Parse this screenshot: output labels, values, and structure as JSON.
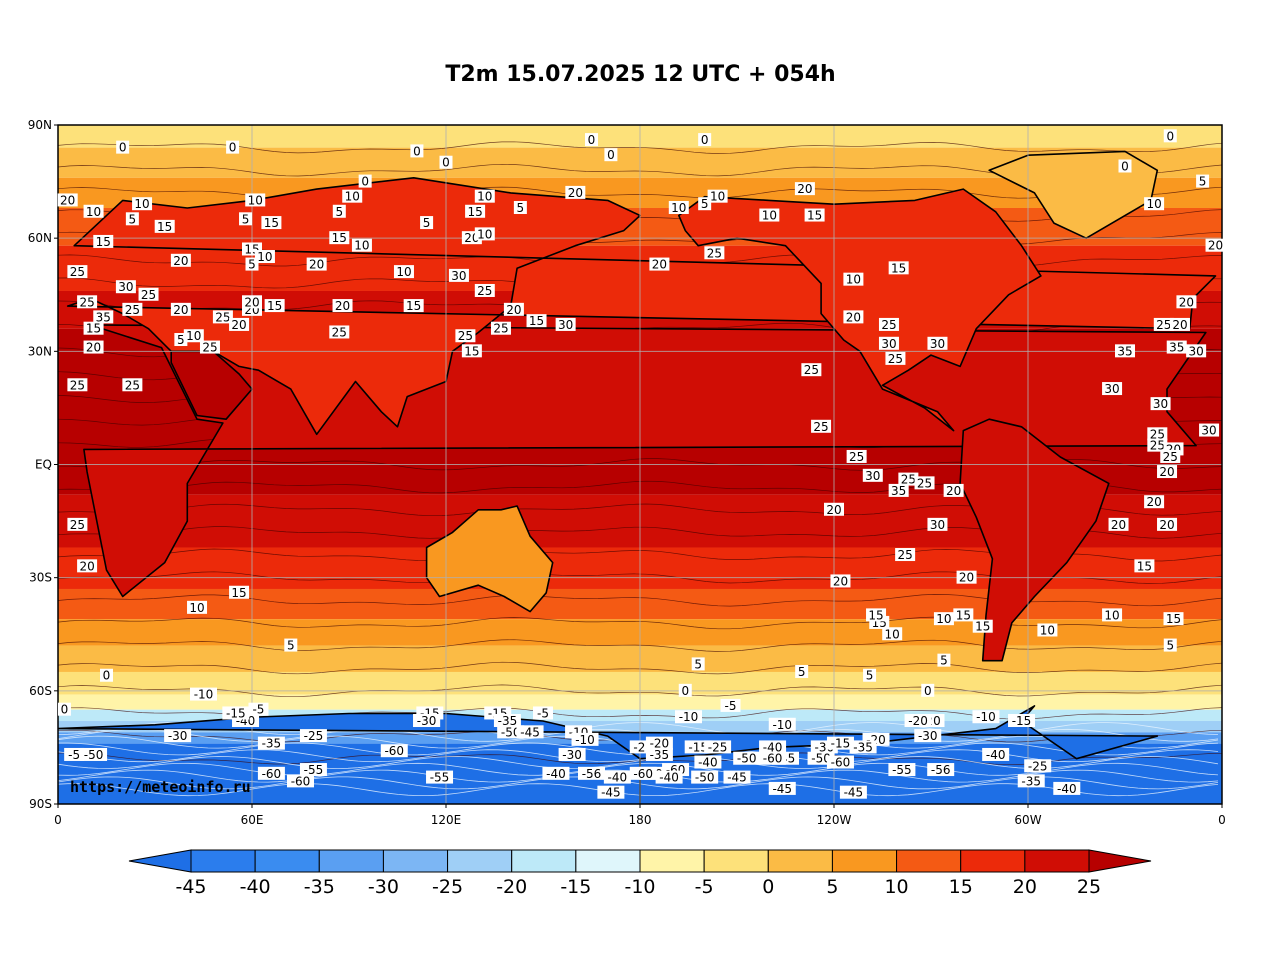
{
  "title": "T2m 15.07.2025 12 UTC + 054h",
  "watermark": "https://meteoinfo.ru",
  "map": {
    "lat_labels": [
      "90N",
      "60N",
      "30N",
      "EQ",
      "30S",
      "60S",
      "90S"
    ],
    "lon_labels": [
      "0",
      "60E",
      "120E",
      "180",
      "120W",
      "60W",
      "0"
    ],
    "grid": true
  },
  "colorbar": {
    "ticks": [
      "-45",
      "-40",
      "-35",
      "-30",
      "-25",
      "-20",
      "-15",
      "-10",
      "-5",
      "0",
      "5",
      "10",
      "15",
      "20",
      "25"
    ],
    "colors": [
      "#1e6fe6",
      "#2b7ded",
      "#3a8cf0",
      "#5a9ff2",
      "#7cb6f4",
      "#9fcff6",
      "#bde9f8",
      "#dff6fb",
      "#fff4a8",
      "#fde17a",
      "#fbbb45",
      "#f99820",
      "#f45a14",
      "#ec2a0a",
      "#d00d05",
      "#b70000"
    ],
    "under_color": "#1e6fe6",
    "over_color": "#b70000"
  },
  "contour_labels": [
    {
      "t": "0",
      "lon": -16,
      "lat": 87
    },
    {
      "t": "0",
      "lon": 20,
      "lat": 84
    },
    {
      "t": "0",
      "lon": 54,
      "lat": 84
    },
    {
      "t": "0",
      "lon": -30,
      "lat": 79
    },
    {
      "t": "5",
      "lon": -6,
      "lat": 75
    },
    {
      "t": "10",
      "lon": -21,
      "lat": 69
    },
    {
      "t": "20",
      "lon": 3,
      "lat": 70
    },
    {
      "t": "10",
      "lon": 11,
      "lat": 67
    },
    {
      "t": "5",
      "lon": 23,
      "lat": 65
    },
    {
      "t": "10",
      "lon": 26,
      "lat": 69
    },
    {
      "t": "15",
      "lon": 33,
      "lat": 63
    },
    {
      "t": "20",
      "lon": -2,
      "lat": 58
    },
    {
      "t": "15",
      "lon": 14,
      "lat": 59
    },
    {
      "t": "25",
      "lon": 6,
      "lat": 51
    },
    {
      "t": "20",
      "lon": -11,
      "lat": 43
    },
    {
      "t": "25",
      "lon": 9,
      "lat": 43
    },
    {
      "t": "30",
      "lon": 21,
      "lat": 47
    },
    {
      "t": "25",
      "lon": 28,
      "lat": 45
    },
    {
      "t": "35",
      "lon": 14,
      "lat": 39
    },
    {
      "t": "25",
      "lon": 23,
      "lat": 41
    },
    {
      "t": "20",
      "lon": 38,
      "lat": 41
    },
    {
      "t": "25",
      "lon": 51,
      "lat": 39
    },
    {
      "t": "20",
      "lon": 56,
      "lat": 37
    },
    {
      "t": "15",
      "lon": 11,
      "lat": 36
    },
    {
      "t": "20",
      "lon": 11,
      "lat": 31
    },
    {
      "t": "5",
      "lon": 38,
      "lat": 33
    },
    {
      "t": "10",
      "lon": 42,
      "lat": 34
    },
    {
      "t": "25",
      "lon": 47,
      "lat": 31
    },
    {
      "t": "20",
      "lon": 60,
      "lat": 41
    },
    {
      "t": "15",
      "lon": 67,
      "lat": 42
    },
    {
      "t": "25",
      "lon": -18,
      "lat": 37
    },
    {
      "t": "20",
      "lon": -13,
      "lat": 37
    },
    {
      "t": "35",
      "lon": -30,
      "lat": 30
    },
    {
      "t": "35",
      "lon": -14,
      "lat": 31
    },
    {
      "t": "30",
      "lon": -8,
      "lat": 30
    },
    {
      "t": "30",
      "lon": -1,
      "lat": 28
    },
    {
      "t": "25",
      "lon": 6,
      "lat": 21
    },
    {
      "t": "25",
      "lon": 23,
      "lat": 21
    },
    {
      "t": "30",
      "lon": -34,
      "lat": 20
    },
    {
      "t": "30",
      "lon": -19,
      "lat": 16
    },
    {
      "t": "25",
      "lon": -20,
      "lat": 8
    },
    {
      "t": "25",
      "lon": -20,
      "lat": 5
    },
    {
      "t": "30",
      "lon": -4,
      "lat": 9
    },
    {
      "t": "20",
      "lon": -15,
      "lat": 4
    },
    {
      "t": "25",
      "lon": -16,
      "lat": 2
    },
    {
      "t": "20",
      "lon": -17,
      "lat": -2
    },
    {
      "t": "20",
      "lon": -21,
      "lat": -10
    },
    {
      "t": "20",
      "lon": -32,
      "lat": -16
    },
    {
      "t": "20",
      "lon": -17,
      "lat": -16
    },
    {
      "t": "15",
      "lon": -24,
      "lat": -27
    },
    {
      "t": "25",
      "lon": 6,
      "lat": -16
    },
    {
      "t": "20",
      "lon": 9,
      "lat": -27
    },
    {
      "t": "10",
      "lon": -34,
      "lat": -40
    },
    {
      "t": "15",
      "lon": -15,
      "lat": -41
    },
    {
      "t": "5",
      "lon": -16,
      "lat": -48
    },
    {
      "t": "0",
      "lon": 15,
      "lat": -56
    },
    {
      "t": "10",
      "lon": 43,
      "lat": -38
    },
    {
      "t": "15",
      "lon": 56,
      "lat": -34
    },
    {
      "t": "5",
      "lon": 72,
      "lat": -48
    },
    {
      "t": "-10",
      "lon": 45,
      "lat": -61
    },
    {
      "t": "10",
      "lon": 61,
      "lat": 70
    },
    {
      "t": "5",
      "lon": 58,
      "lat": 65
    },
    {
      "t": "15",
      "lon": 66,
      "lat": 64
    },
    {
      "t": "15",
      "lon": 60,
      "lat": 57
    },
    {
      "t": "10",
      "lon": 64,
      "lat": 55
    },
    {
      "t": "5",
      "lon": 60,
      "lat": 53
    },
    {
      "t": "20",
      "lon": 80,
      "lat": 53
    },
    {
      "t": "20",
      "lon": 38,
      "lat": 54
    },
    {
      "t": "20",
      "lon": 60,
      "lat": 43
    },
    {
      "t": "25",
      "lon": 87,
      "lat": 35
    },
    {
      "t": "20",
      "lon": 88,
      "lat": 42
    },
    {
      "t": "10",
      "lon": 91,
      "lat": 71
    },
    {
      "t": "5",
      "lon": 87,
      "lat": 67
    },
    {
      "t": "15",
      "lon": 87,
      "lat": 60
    },
    {
      "t": "10",
      "lon": 94,
      "lat": 58
    },
    {
      "t": "0",
      "lon": 95,
      "lat": 75
    },
    {
      "t": "0",
      "lon": 75,
      "lat": 89
    },
    {
      "t": "0",
      "lon": 111,
      "lat": 83
    },
    {
      "t": "5",
      "lon": 114,
      "lat": 64
    },
    {
      "t": "10",
      "lon": 107,
      "lat": 51
    },
    {
      "t": "15",
      "lon": 110,
      "lat": 42
    },
    {
      "t": "20",
      "lon": 141,
      "lat": 41
    },
    {
      "t": "25",
      "lon": 137,
      "lat": 36
    },
    {
      "t": "15",
      "lon": 148,
      "lat": 38
    },
    {
      "t": "15",
      "lon": 128,
      "lat": 30
    },
    {
      "t": "25",
      "lon": 126,
      "lat": 34
    },
    {
      "t": "30",
      "lon": 157,
      "lat": 37
    },
    {
      "t": "30",
      "lon": 124,
      "lat": 50
    },
    {
      "t": "25",
      "lon": 132,
      "lat": 46
    },
    {
      "t": "20",
      "lon": 128,
      "lat": 60
    },
    {
      "t": "15",
      "lon": 129,
      "lat": 67
    },
    {
      "t": "10",
      "lon": 132,
      "lat": 71
    },
    {
      "t": "5",
      "lon": 143,
      "lat": 68
    },
    {
      "t": "10",
      "lon": 132,
      "lat": 61
    },
    {
      "t": "20",
      "lon": 160,
      "lat": 72
    },
    {
      "t": "0",
      "lon": 120,
      "lat": 80
    },
    {
      "t": "0",
      "lon": 165,
      "lat": 86
    },
    {
      "t": "0",
      "lon": 171,
      "lat": 82
    },
    {
      "t": "0",
      "lon": -160,
      "lat": 86
    },
    {
      "t": "20",
      "lon": -174,
      "lat": 53
    },
    {
      "t": "25",
      "lon": -157,
      "lat": 56
    },
    {
      "t": "20",
      "lon": -129,
      "lat": 73
    },
    {
      "t": "15",
      "lon": -126,
      "lat": 66
    },
    {
      "t": "10",
      "lon": -140,
      "lat": 66
    },
    {
      "t": "10",
      "lon": -156,
      "lat": 71
    },
    {
      "t": "10",
      "lon": -168,
      "lat": 68
    },
    {
      "t": "5",
      "lon": -160,
      "lat": 69
    },
    {
      "t": "15",
      "lon": -100,
      "lat": 52
    },
    {
      "t": "20",
      "lon": -114,
      "lat": 39
    },
    {
      "t": "25",
      "lon": -103,
      "lat": 37
    },
    {
      "t": "10",
      "lon": -114,
      "lat": 49
    },
    {
      "t": "30",
      "lon": -88,
      "lat": 32
    },
    {
      "t": "30",
      "lon": -103,
      "lat": 32
    },
    {
      "t": "25",
      "lon": -127,
      "lat": 25
    },
    {
      "t": "25",
      "lon": -124,
      "lat": 10
    },
    {
      "t": "25",
      "lon": -101,
      "lat": 28
    },
    {
      "t": "25",
      "lon": -113,
      "lat": 2
    },
    {
      "t": "25",
      "lon": -97,
      "lat": -4
    },
    {
      "t": "30",
      "lon": -108,
      "lat": -3
    },
    {
      "t": "35",
      "lon": -100,
      "lat": -7
    },
    {
      "t": "30",
      "lon": -88,
      "lat": -16
    },
    {
      "t": "25",
      "lon": -98,
      "lat": -24
    },
    {
      "t": "20",
      "lon": -118,
      "lat": -31
    },
    {
      "t": "20",
      "lon": -79,
      "lat": -30
    },
    {
      "t": "15",
      "lon": -74,
      "lat": -43
    },
    {
      "t": "10",
      "lon": -86,
      "lat": -41
    },
    {
      "t": "5",
      "lon": -86,
      "lat": -52
    },
    {
      "t": "15",
      "lon": -106,
      "lat": -42
    },
    {
      "t": "10",
      "lon": -102,
      "lat": -45
    },
    {
      "t": "5",
      "lon": -109,
      "lat": -56
    },
    {
      "t": "0",
      "lon": -91,
      "lat": -60
    },
    {
      "t": "5",
      "lon": -130,
      "lat": -55
    },
    {
      "t": "20",
      "lon": -120,
      "lat": -12
    },
    {
      "t": "25",
      "lon": -92,
      "lat": -5
    },
    {
      "t": "20",
      "lon": -83,
      "lat": -7
    },
    {
      "t": "15",
      "lon": -107,
      "lat": -40
    },
    {
      "t": "10",
      "lon": -54,
      "lat": -44
    },
    {
      "t": "15",
      "lon": -80,
      "lat": -40
    },
    {
      "t": "5",
      "lon": -162,
      "lat": -53
    },
    {
      "t": "0",
      "lon": -166,
      "lat": -60
    },
    {
      "t": "-5",
      "lon": -152,
      "lat": -64
    },
    {
      "t": "-10",
      "lon": -136,
      "lat": -69
    },
    {
      "t": "-10",
      "lon": -165,
      "lat": -67
    },
    {
      "t": "-10",
      "lon": 161,
      "lat": -71
    },
    {
      "t": "-20",
      "lon": -179,
      "lat": -75
    },
    {
      "t": "-15",
      "lon": -162,
      "lat": -75
    },
    {
      "t": "-25",
      "lon": -156,
      "lat": -75
    },
    {
      "t": "-40",
      "lon": -139,
      "lat": -75
    },
    {
      "t": "-30",
      "lon": -123,
      "lat": -75
    },
    {
      "t": "-15",
      "lon": -118,
      "lat": -74
    },
    {
      "t": "-20",
      "lon": -107,
      "lat": -73
    },
    {
      "t": "-35",
      "lon": -111,
      "lat": -75
    },
    {
      "t": "-20",
      "lon": -90,
      "lat": -68
    },
    {
      "t": "-30",
      "lon": -91,
      "lat": -72
    },
    {
      "t": "-10",
      "lon": -73,
      "lat": -67
    },
    {
      "t": "-15",
      "lon": -62,
      "lat": -68
    },
    {
      "t": "-25",
      "lon": -57,
      "lat": -80
    },
    {
      "t": "-40",
      "lon": -70,
      "lat": -77
    },
    {
      "t": "-56",
      "lon": -87,
      "lat": -81
    },
    {
      "t": "-55",
      "lon": -99,
      "lat": -81
    },
    {
      "t": "-35",
      "lon": -59,
      "lat": -84
    },
    {
      "t": "-40",
      "lon": -48,
      "lat": -86
    },
    {
      "t": "-45",
      "lon": -114,
      "lat": -87
    },
    {
      "t": "-45",
      "lon": -136,
      "lat": -86
    },
    {
      "t": "-50",
      "lon": -178,
      "lat": -89
    },
    {
      "t": "-45",
      "lon": -150,
      "lat": -83
    },
    {
      "t": "-50",
      "lon": -160,
      "lat": -83
    },
    {
      "t": "-60",
      "lon": -169,
      "lat": -81
    },
    {
      "t": "-50",
      "lon": -147,
      "lat": -78
    },
    {
      "t": "-45",
      "lon": -135,
      "lat": -78
    },
    {
      "t": "-50",
      "lon": -124,
      "lat": -78
    },
    {
      "t": "-60",
      "lon": -118,
      "lat": -79
    },
    {
      "t": "-60",
      "lon": -139,
      "lat": -78
    },
    {
      "t": "-40",
      "lon": 173,
      "lat": -83
    },
    {
      "t": "-45",
      "lon": 171,
      "lat": -87
    },
    {
      "t": "-56",
      "lon": 165,
      "lat": -82
    },
    {
      "t": "-40",
      "lon": 154,
      "lat": -82
    },
    {
      "t": "-30",
      "lon": 159,
      "lat": -77
    },
    {
      "t": "-10",
      "lon": 163,
      "lat": -73
    },
    {
      "t": "-60",
      "lon": -176,
      "lat": -82
    },
    {
      "t": "-35",
      "lon": -174,
      "lat": -77
    },
    {
      "t": "-20",
      "lon": -174,
      "lat": -74
    },
    {
      "t": "-40",
      "lon": -171,
      "lat": -83
    },
    {
      "t": "-50",
      "lon": 140,
      "lat": -71
    },
    {
      "t": "-45",
      "lon": 146,
      "lat": -71
    },
    {
      "t": "-15",
      "lon": 136,
      "lat": -66
    },
    {
      "t": "-35",
      "lon": 139,
      "lat": -68
    },
    {
      "t": "-15",
      "lon": 115,
      "lat": -66
    },
    {
      "t": "-20",
      "lon": 114,
      "lat": -68
    },
    {
      "t": "-30",
      "lon": 114,
      "lat": -68
    },
    {
      "t": "-60",
      "lon": 104,
      "lat": -76
    },
    {
      "t": "-55",
      "lon": 118,
      "lat": -83
    },
    {
      "t": "-55",
      "lon": 79,
      "lat": -81
    },
    {
      "t": "-60",
      "lon": 75,
      "lat": -84
    },
    {
      "t": "-60",
      "lon": 66,
      "lat": -82
    },
    {
      "t": "-35",
      "lon": 66,
      "lat": -74
    },
    {
      "t": "-25",
      "lon": 79,
      "lat": -72
    },
    {
      "t": "-40",
      "lon": 58,
      "lat": -68
    },
    {
      "t": "-15",
      "lon": 55,
      "lat": -66
    },
    {
      "t": "-5",
      "lon": 62,
      "lat": -65
    },
    {
      "t": "-30",
      "lon": 37,
      "lat": -72
    },
    {
      "t": "-50",
      "lon": 11,
      "lat": -77
    },
    {
      "t": "-5",
      "lon": 5,
      "lat": -77
    },
    {
      "t": "0",
      "lon": 2,
      "lat": -65
    },
    {
      "t": "-5",
      "lon": 150,
      "lat": -66
    },
    {
      "t": "-20",
      "lon": -94,
      "lat": -68
    },
    {
      "t": "-40",
      "lon": -159,
      "lat": -79
    },
    {
      "t": "-60",
      "lon": -179,
      "lat": -82
    }
  ]
}
